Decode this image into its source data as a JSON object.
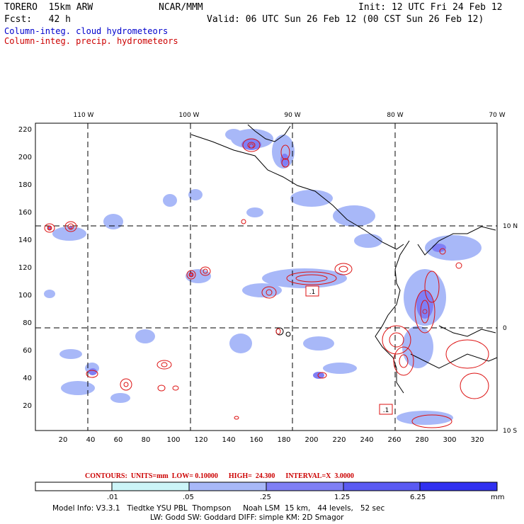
{
  "header": {
    "model": "TORERO  15km ARW",
    "center": "NCAR/MMM",
    "init": "Init: 12 UTC Fri 24 Feb 12",
    "fcst": "Fcst:   42 h",
    "valid": "Valid: 06 UTC Sun 26 Feb 12 (00 CST Sun 26 Feb 12)"
  },
  "legend": {
    "cloud": "Column-integ. cloud hydrometeors",
    "precip": "Column-integ. precip. hydrometeors"
  },
  "colors": {
    "cloud_levels": [
      "#ffffff",
      "#ccf5f8",
      "#a8b8f8",
      "#7f7ff5",
      "#5a5af2",
      "#3030f0"
    ],
    "precip_contour": "#dd1111",
    "coast": "#000000"
  },
  "map": {
    "lon_labels": [
      "110 W",
      "100 W",
      "90 W",
      "80 W",
      "70 W"
    ],
    "lat_labels": [
      "10 N",
      "0",
      "10 S"
    ],
    "x_ticks": [
      "20",
      "40",
      "60",
      "80",
      "100",
      "120",
      "140",
      "160",
      "180",
      "200",
      "220",
      "240",
      "260",
      "280",
      "300",
      "320"
    ],
    "y_ticks": [
      "20",
      "40",
      "60",
      "80",
      "100",
      "120",
      "140",
      "160",
      "180",
      "200",
      "220"
    ],
    "box_labels": [
      ".1",
      ".1"
    ]
  },
  "contours": {
    "label": "CONTOURS:  UNITS=mm  LOW= 0.10000      HIGH=  24.300      INTERVAL=X  3.0000"
  },
  "colorbar": {
    "labels": [
      ".01",
      ".05",
      ".25",
      "1.25",
      "6.25"
    ],
    "units": "mm"
  },
  "model_info": {
    "line1": "Model Info: V3.3.1   Tiedtke YSU PBL  Thompson     Noah LSM  15 km,   44 levels,   52 sec",
    "line2": "LW: Godd SW: Goddard DIFF: simple KM: 2D Smagor"
  }
}
